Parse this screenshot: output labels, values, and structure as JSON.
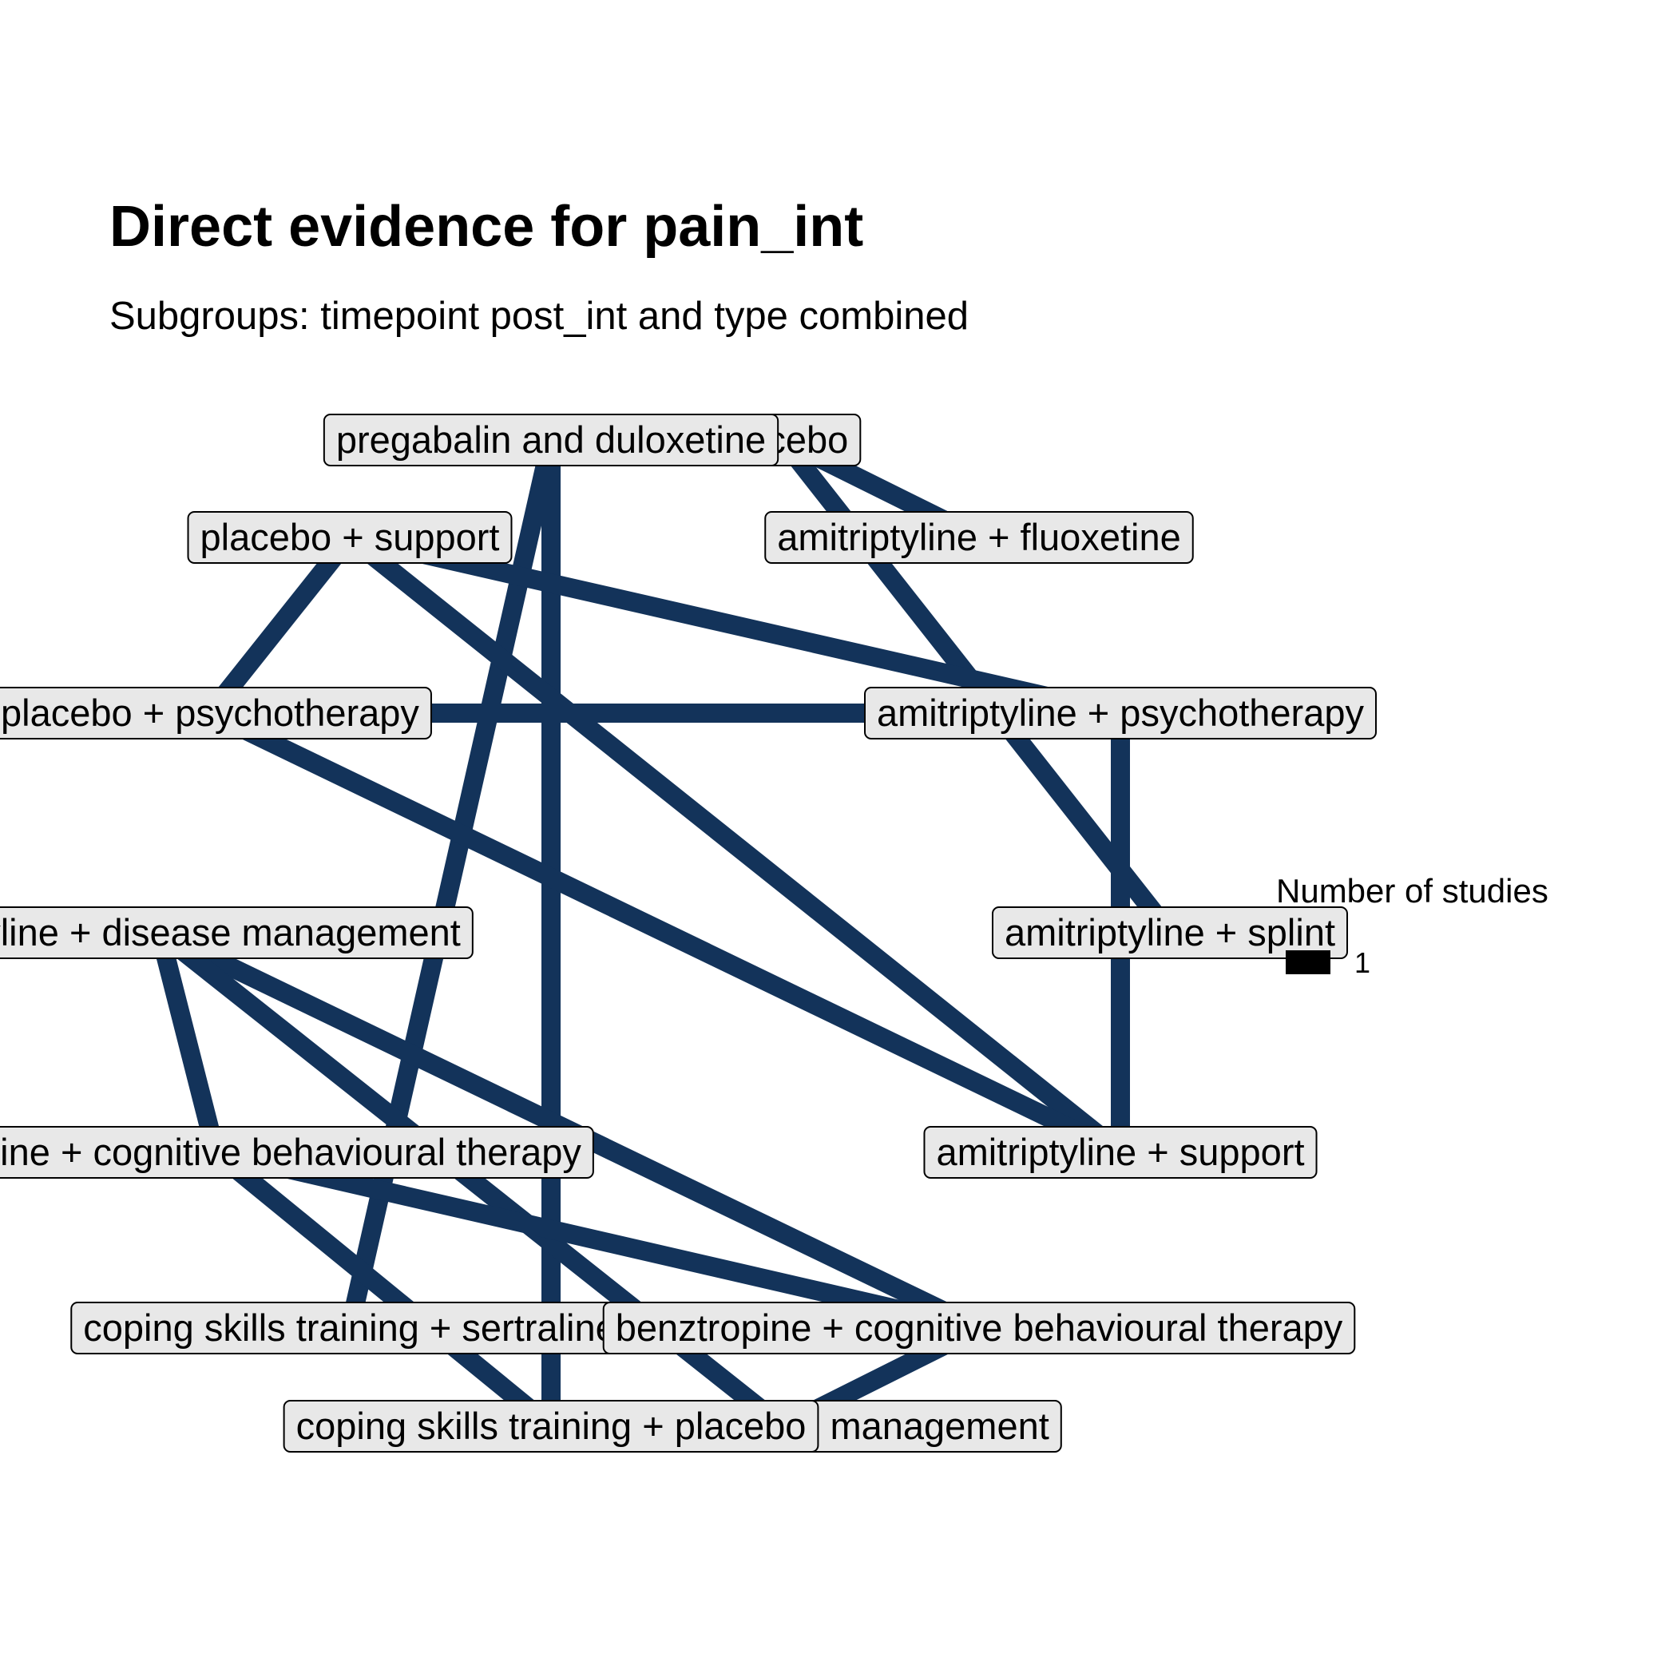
{
  "title": "Direct evidence for pain_int",
  "subtitle": "Subgroups: timepoint post_int and type combined",
  "colors": {
    "edge": "#13335a",
    "label_fill": "#e8e8e8",
    "label_border": "#000000"
  },
  "legend": {
    "title": "Number of studies",
    "entries": [
      "1"
    ]
  },
  "nodes": [
    {
      "id": "placebo",
      "label": "placebo"
    },
    {
      "id": "pregabalin-and-duloxetine",
      "label": "pregabalin and duloxetine"
    },
    {
      "id": "placebo-support",
      "label": "placebo + support"
    },
    {
      "id": "amitriptyline-fluoxetine",
      "label": "amitriptyline + fluoxetine"
    },
    {
      "id": "placebo-psychotherapy",
      "label": "placebo + psychotherapy"
    },
    {
      "id": "amitriptyline-psychotherapy",
      "label": "amitriptyline + psychotherapy"
    },
    {
      "id": "amitriptyline-disease-management",
      "label": "amitriptyline + disease management"
    },
    {
      "id": "amitriptyline-splint",
      "label": "amitriptyline + splint"
    },
    {
      "id": "amitriptyline-cbt",
      "label": "amitriptyline + cognitive behavioural therapy"
    },
    {
      "id": "amitriptyline-support",
      "label": "amitriptyline + support"
    },
    {
      "id": "coping-skills-sertraline",
      "label": "coping skills training + sertraline"
    },
    {
      "id": "benztropine-cbt",
      "label": "benztropine + cognitive behavioural therapy"
    },
    {
      "id": "placebo-disease-management",
      "label": "placebo + disease management"
    },
    {
      "id": "coping-skills-placebo",
      "label": "coping skills training + placebo"
    }
  ],
  "edges": [
    {
      "from": "placebo",
      "to": "amitriptyline-fluoxetine",
      "studies": 1
    },
    {
      "from": "placebo",
      "to": "amitriptyline-splint",
      "studies": 1
    },
    {
      "from": "pregabalin-and-duloxetine",
      "to": "coping-skills-sertraline",
      "studies": 1
    },
    {
      "from": "pregabalin-and-duloxetine",
      "to": "coping-skills-placebo",
      "studies": 1
    },
    {
      "from": "placebo-support",
      "to": "placebo-psychotherapy",
      "studies": 1
    },
    {
      "from": "placebo-support",
      "to": "amitriptyline-psychotherapy",
      "studies": 1
    },
    {
      "from": "placebo-support",
      "to": "amitriptyline-support",
      "studies": 1
    },
    {
      "from": "placebo-psychotherapy",
      "to": "amitriptyline-psychotherapy",
      "studies": 1
    },
    {
      "from": "placebo-psychotherapy",
      "to": "amitriptyline-support",
      "studies": 1
    },
    {
      "from": "amitriptyline-psychotherapy",
      "to": "amitriptyline-support",
      "studies": 1
    },
    {
      "from": "amitriptyline-disease-management",
      "to": "amitriptyline-cbt",
      "studies": 1
    },
    {
      "from": "amitriptyline-disease-management",
      "to": "benztropine-cbt",
      "studies": 1
    },
    {
      "from": "amitriptyline-disease-management",
      "to": "placebo-disease-management",
      "studies": 1
    },
    {
      "from": "amitriptyline-cbt",
      "to": "benztropine-cbt",
      "studies": 1
    },
    {
      "from": "amitriptyline-cbt",
      "to": "coping-skills-placebo",
      "studies": 1
    },
    {
      "from": "benztropine-cbt",
      "to": "placebo-disease-management",
      "studies": 1
    }
  ]
}
